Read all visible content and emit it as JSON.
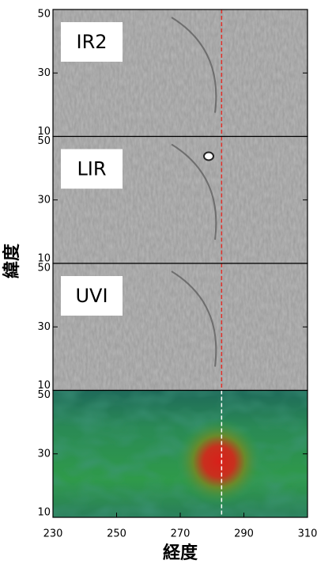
{
  "chart_data": [
    {
      "type": "image",
      "label": "IR2",
      "xlim": [
        230,
        310
      ],
      "ylim": [
        10,
        50
      ],
      "yticks": [
        10,
        30,
        50
      ],
      "marker_x": 283,
      "marker_color": "#e0302a"
    },
    {
      "type": "image",
      "label": "LIR",
      "xlim": [
        230,
        310
      ],
      "ylim": [
        10,
        50
      ],
      "yticks": [
        10,
        30,
        50
      ],
      "marker_x": 283,
      "marker_color": "#e0302a"
    },
    {
      "type": "image",
      "label": "UVI",
      "xlim": [
        230,
        310
      ],
      "ylim": [
        10,
        50
      ],
      "yticks": [
        10,
        30,
        50
      ],
      "marker_x": 283,
      "marker_color": "#e0302a"
    },
    {
      "type": "heatmap",
      "xlim": [
        230,
        310
      ],
      "ylim": [
        10,
        50
      ],
      "yticks": [
        10,
        30,
        50
      ],
      "xticks": [
        230,
        250,
        270,
        290,
        310
      ],
      "xlabel": "経度",
      "marker_x": 283,
      "marker_color": "#ffffff"
    }
  ],
  "ylabel": "緯度"
}
